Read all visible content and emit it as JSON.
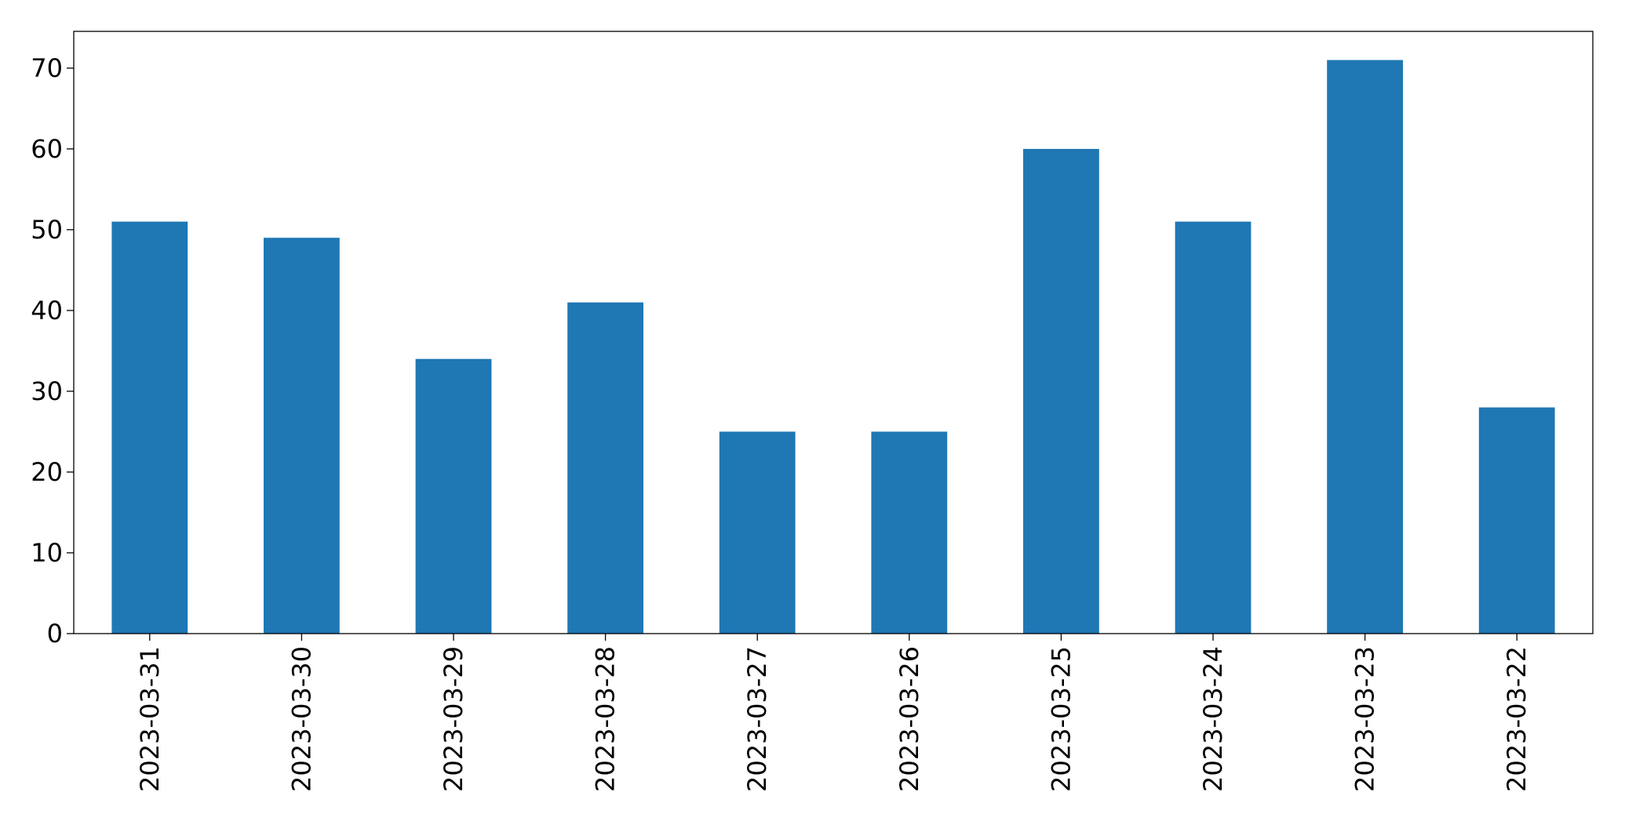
{
  "chart_data": {
    "type": "bar",
    "categories": [
      "2023-03-31",
      "2023-03-30",
      "2023-03-29",
      "2023-03-28",
      "2023-03-27",
      "2023-03-26",
      "2023-03-25",
      "2023-03-24",
      "2023-03-23",
      "2023-03-22"
    ],
    "values": [
      51,
      49,
      34,
      41,
      25,
      25,
      60,
      51,
      71,
      28
    ],
    "color": "#1f77b4",
    "ylim": [
      0,
      74.55
    ],
    "yticks": [
      0,
      10,
      20,
      30,
      40,
      50,
      60,
      70
    ],
    "grid": false
  }
}
